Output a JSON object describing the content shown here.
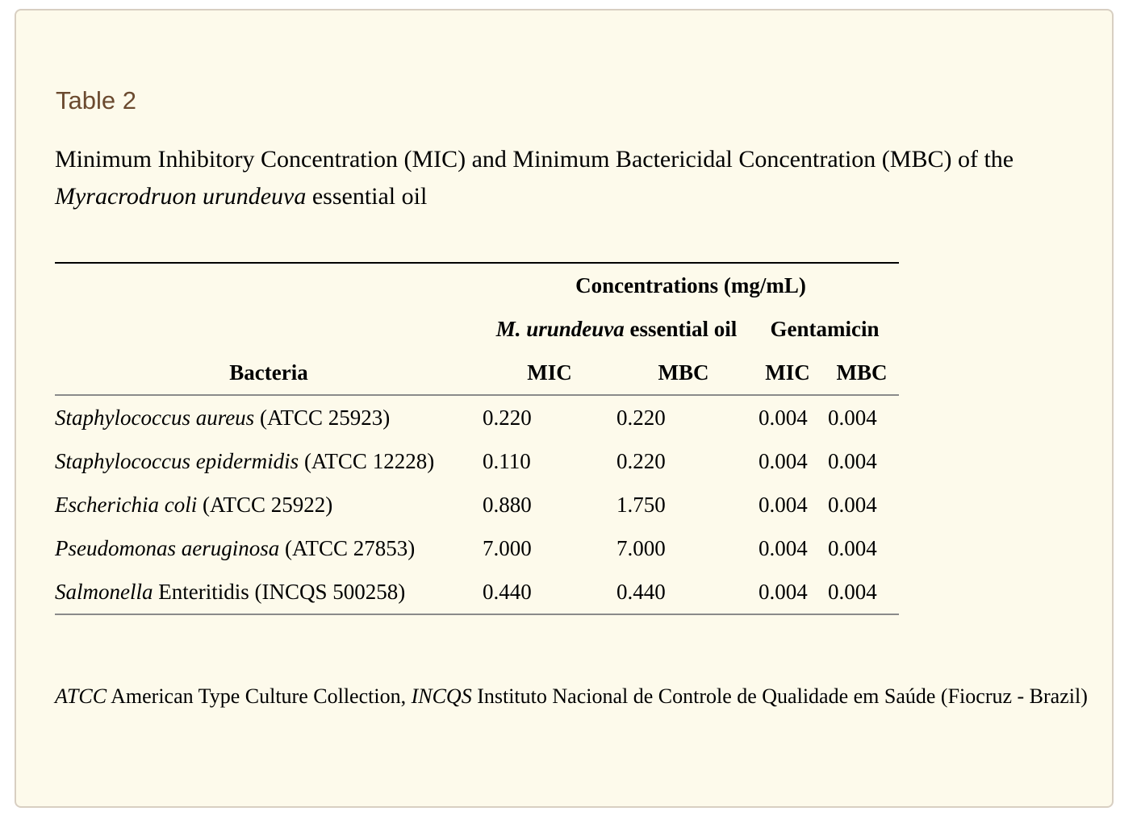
{
  "table_label": "Table 2",
  "caption": {
    "before": "Minimum Inhibitory Concentration (MIC) and Minimum Bactericidal Concentration (MBC) of the ",
    "species": "Myracrodruon urundeuva",
    "after": " essential oil"
  },
  "header": {
    "concentrations": "Concentrations (mg/mL)",
    "oil_italic": "M. urundeuva",
    "oil_rest": " essential oil",
    "gentamicin": "Gentamicin",
    "bacteria": "Bacteria",
    "mic": "MIC",
    "mbc": "MBC"
  },
  "rows": [
    {
      "name_italic": "Staphylococcus aureus",
      "name_rest": " (ATCC 25923)",
      "oil_mic": "0.220",
      "oil_mbc": "0.220",
      "gen_mic": "0.004",
      "gen_mbc": "0.004"
    },
    {
      "name_italic": "Staphylococcus epidermidis",
      "name_rest": " (ATCC 12228)",
      "oil_mic": "0.110",
      "oil_mbc": "0.220",
      "gen_mic": "0.004",
      "gen_mbc": "0.004"
    },
    {
      "name_italic": "Escherichia coli",
      "name_rest": " (ATCC 25922)",
      "oil_mic": "0.880",
      "oil_mbc": "1.750",
      "gen_mic": "0.004",
      "gen_mbc": "0.004"
    },
    {
      "name_italic": "Pseudomonas aeruginosa",
      "name_rest": " (ATCC 27853)",
      "oil_mic": "7.000",
      "oil_mbc": "7.000",
      "gen_mic": "0.004",
      "gen_mbc": "0.004"
    },
    {
      "name_italic": "Salmonella",
      "name_rest": " Enteritidis (INCQS 500258)",
      "oil_mic": "0.440",
      "oil_mbc": "0.440",
      "gen_mic": "0.004",
      "gen_mbc": "0.004"
    }
  ],
  "footnote": {
    "abbr1": "ATCC",
    "text1": " American Type Culture Collection, ",
    "abbr2": "INCQS",
    "text2": " Instituto Nacional de Controle de Qualidade em Saúde (Fiocruz - Brazil)"
  }
}
